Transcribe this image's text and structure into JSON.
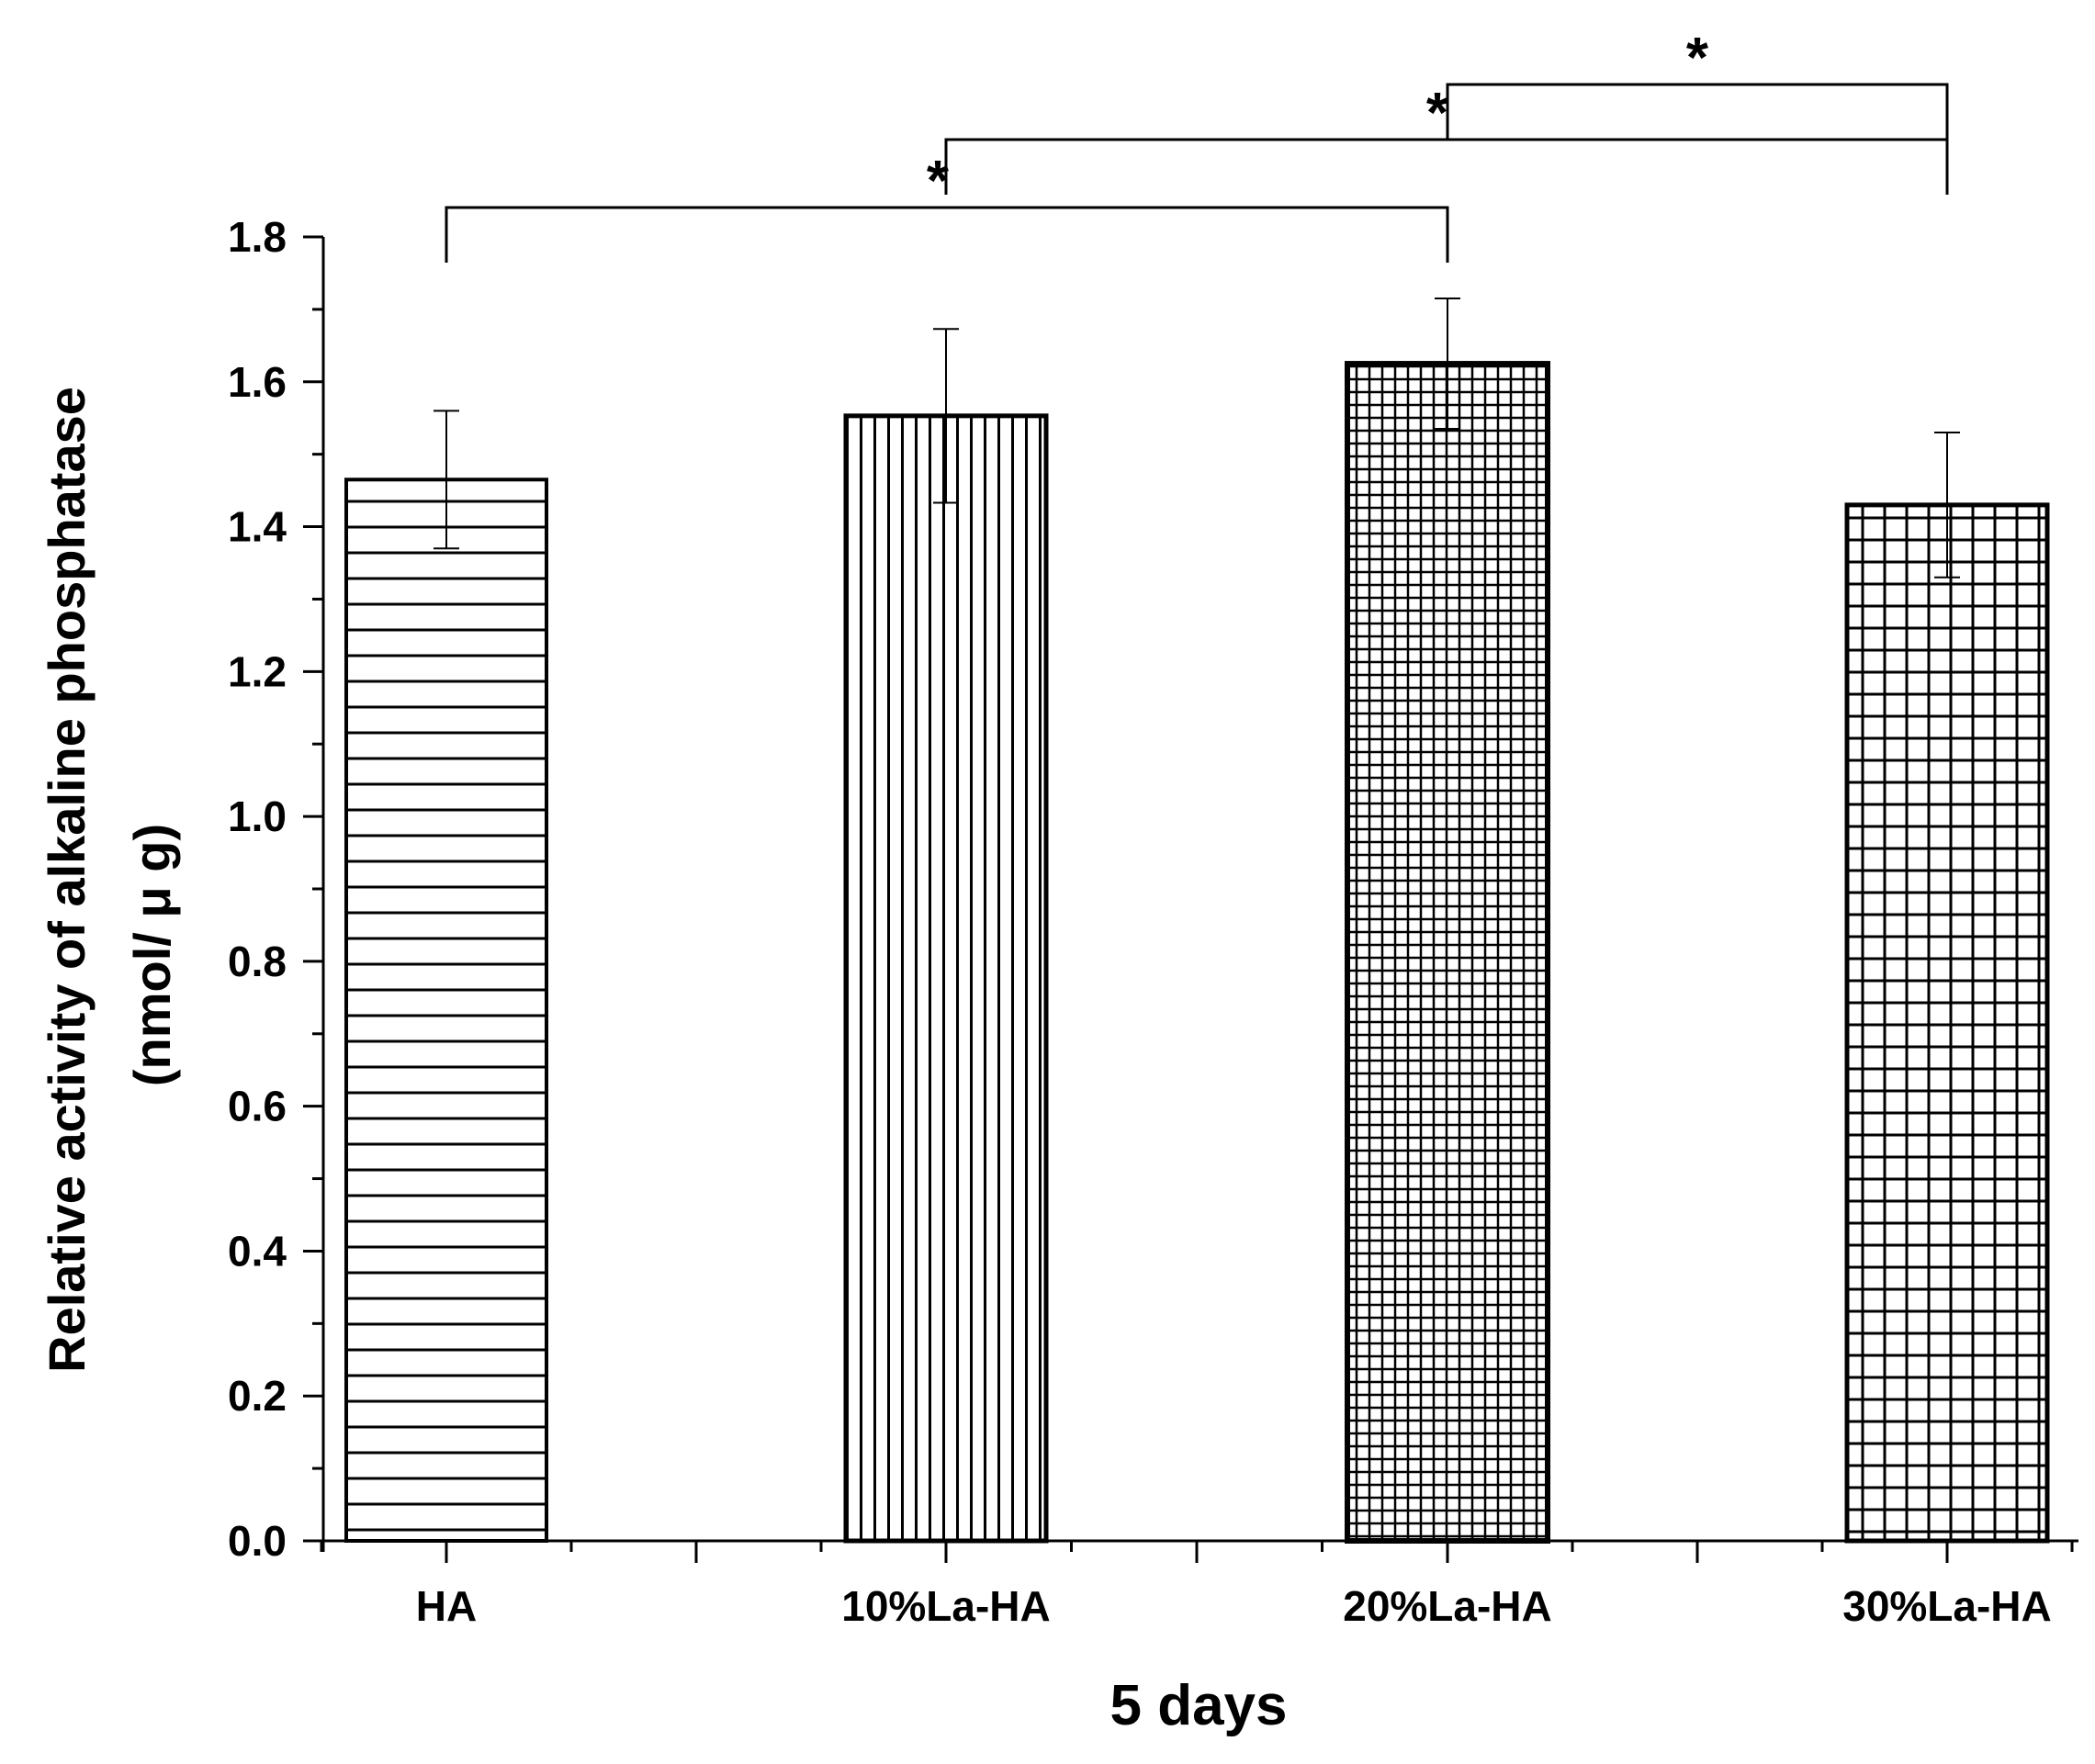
{
  "chart_data": {
    "type": "bar",
    "title": "",
    "xlabel": "5 days",
    "ylabel": "Relative activity of alkaline phosphatase",
    "ylabel_unit": "(nmol/ μ g)",
    "categories": [
      "HA",
      "10%La-HA",
      "20%La-HA",
      "30%La-HA"
    ],
    "values": [
      1.465,
      1.553,
      1.625,
      1.43
    ],
    "errors": [
      0.095,
      0.12,
      0.09,
      0.1
    ],
    "patterns": [
      "horizontal-lines",
      "vertical-lines",
      "fine-grid",
      "grid"
    ],
    "ylim": [
      0.0,
      1.8
    ],
    "yticks": [
      "0.0",
      "0.2",
      "0.4",
      "0.6",
      "0.8",
      "1.0",
      "1.2",
      "1.4",
      "1.6",
      "1.8"
    ],
    "significance": [
      {
        "from": 0,
        "to": 2,
        "label": "*"
      },
      {
        "from": 1,
        "to": 3,
        "label": "*"
      },
      {
        "from": 2,
        "to": 3,
        "label": "*"
      }
    ],
    "colors": {
      "axis": "#000000",
      "bar_fill": "#ffffff",
      "pattern": "#000000"
    }
  }
}
